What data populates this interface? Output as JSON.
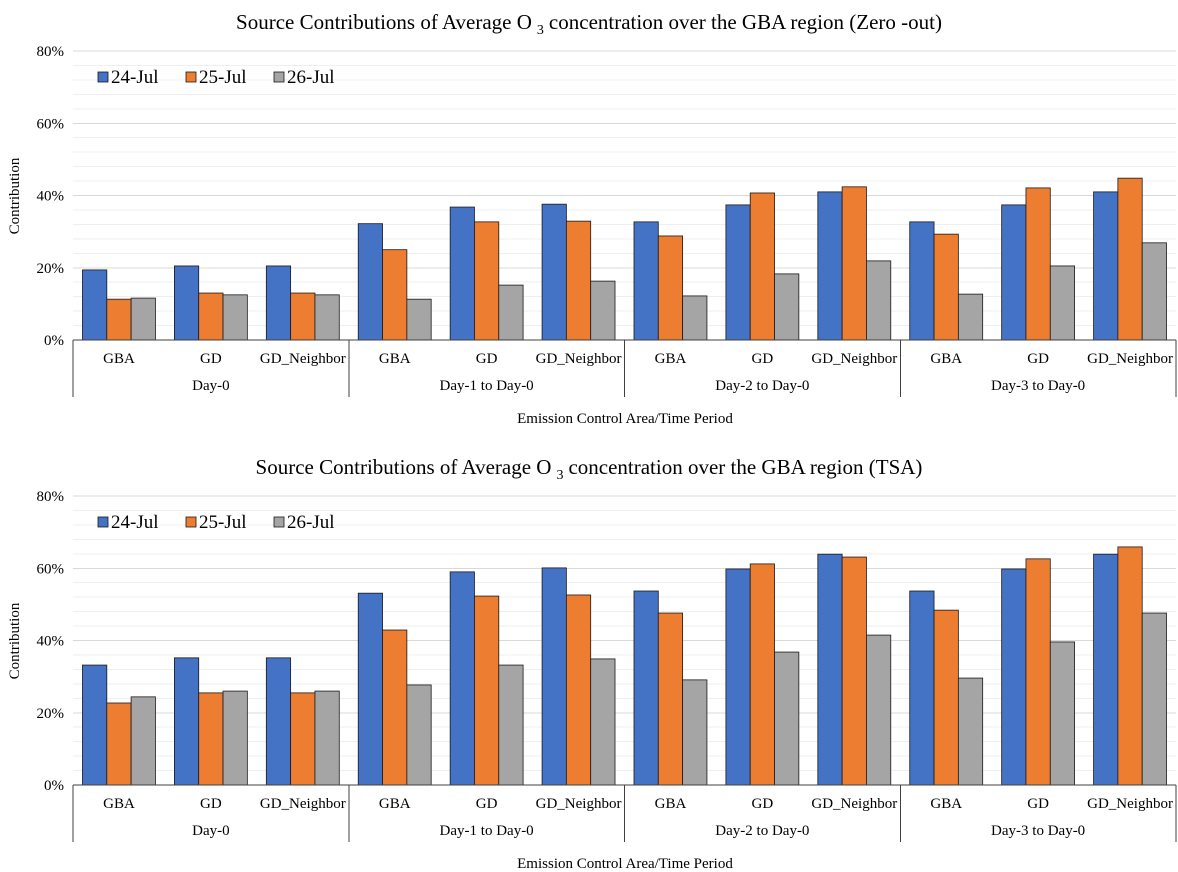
{
  "chart_data": [
    {
      "type": "bar",
      "title": "Source Contributions of Average O",
      "title_subscript": "3",
      "title_end": "concentration over the GBA region (Zero -out)",
      "xlabel": "Emission Control Area/Time Period",
      "ylabel": "Contribution",
      "ylim": [
        0,
        80
      ],
      "yticks": [
        "0%",
        "20%",
        "40%",
        "60%",
        "80%"
      ],
      "grid": true,
      "legend": "top-left",
      "groups": [
        {
          "label": "Day-0",
          "categories": [
            "GBA",
            "GD",
            "GD_Neighbor"
          ]
        },
        {
          "label": "Day-1 to Day-0",
          "categories": [
            "GBA",
            "GD",
            "GD_Neighbor"
          ]
        },
        {
          "label": "Day-2 to Day-0",
          "categories": [
            "GBA",
            "GD",
            "GD_Neighbor"
          ]
        },
        {
          "label": "Day-3 to Day-0",
          "categories": [
            "GBA",
            "GD",
            "GD_Neighbor"
          ]
        }
      ],
      "series": [
        {
          "name": "24-Jul",
          "color": "#4472C4",
          "values": [
            19.4,
            20.5,
            20.5,
            32.2,
            36.8,
            37.6,
            32.7,
            37.4,
            41.0,
            32.7,
            37.4,
            41.0
          ]
        },
        {
          "name": "25-Jul",
          "color": "#ED7D31",
          "values": [
            11.3,
            13.0,
            13.0,
            25.0,
            32.7,
            32.9,
            28.8,
            40.7,
            42.4,
            29.3,
            42.1,
            44.8
          ]
        },
        {
          "name": "26-Jul",
          "color": "#A5A5A5",
          "values": [
            11.6,
            12.5,
            12.5,
            11.3,
            15.2,
            16.3,
            12.2,
            18.3,
            21.9,
            12.7,
            20.5,
            26.9
          ]
        }
      ]
    },
    {
      "type": "bar",
      "title": "Source Contributions of Average O",
      "title_subscript": "3",
      "title_end": "concentration over the GBA region (TSA)",
      "xlabel": "Emission Control Area/Time Period",
      "ylabel": "Contribution",
      "ylim": [
        0,
        80
      ],
      "yticks": [
        "0%",
        "20%",
        "40%",
        "60%",
        "80%"
      ],
      "grid": true,
      "legend": "top-left",
      "groups": [
        {
          "label": "Day-0",
          "categories": [
            "GBA",
            "GD",
            "GD_Neighbor"
          ]
        },
        {
          "label": "Day-1 to Day-0",
          "categories": [
            "GBA",
            "GD",
            "GD_Neighbor"
          ]
        },
        {
          "label": "Day-2 to Day-0",
          "categories": [
            "GBA",
            "GD",
            "GD_Neighbor"
          ]
        },
        {
          "label": "Day-3 to Day-0",
          "categories": [
            "GBA",
            "GD",
            "GD_Neighbor"
          ]
        }
      ],
      "series": [
        {
          "name": "24-Jul",
          "color": "#4472C4",
          "values": [
            33.2,
            35.2,
            35.2,
            53.1,
            59.0,
            60.1,
            53.7,
            59.8,
            63.9,
            53.7,
            59.8,
            63.9
          ]
        },
        {
          "name": "25-Jul",
          "color": "#ED7D31",
          "values": [
            22.7,
            25.5,
            25.5,
            42.9,
            52.3,
            52.6,
            47.6,
            61.2,
            63.1,
            48.4,
            62.6,
            65.9
          ]
        },
        {
          "name": "26-Jul",
          "color": "#A5A5A5",
          "values": [
            24.4,
            26.0,
            26.0,
            27.7,
            33.2,
            34.9,
            29.1,
            36.8,
            41.5,
            29.6,
            39.6,
            47.6
          ]
        }
      ]
    }
  ]
}
